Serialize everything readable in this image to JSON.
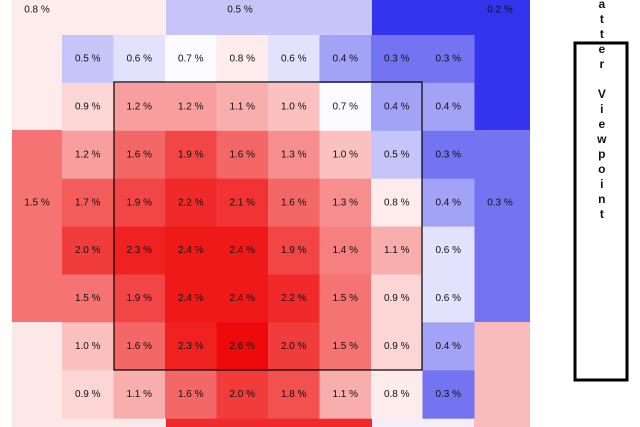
{
  "chart_data": {
    "type": "heatmap",
    "values": [
      [
        0.5,
        0.6,
        0.7,
        0.8,
        0.6,
        0.4,
        0.3,
        0.3
      ],
      [
        0.9,
        1.2,
        1.2,
        1.1,
        1.0,
        0.7,
        0.4,
        0.4
      ],
      [
        1.2,
        1.6,
        1.9,
        1.6,
        1.3,
        1.0,
        0.5,
        0.3
      ],
      [
        1.7,
        1.9,
        2.2,
        2.1,
        1.6,
        1.3,
        0.8,
        0.4
      ],
      [
        2.0,
        2.3,
        2.4,
        2.4,
        1.9,
        1.4,
        1.1,
        0.6
      ],
      [
        1.5,
        1.9,
        2.4,
        2.4,
        2.2,
        1.5,
        0.9,
        0.6
      ],
      [
        1.0,
        1.6,
        2.3,
        2.6,
        2.0,
        1.5,
        0.9,
        0.4
      ],
      [
        0.9,
        1.1,
        1.6,
        2.0,
        1.8,
        1.1,
        0.8,
        0.3
      ]
    ],
    "value_labels": [
      [
        "0.5 %",
        "0.6 %",
        "0.7 %",
        "0.8 %",
        "0.6 %",
        "0.4 %",
        "0.3 %",
        "0.3 %"
      ],
      [
        "0.9 %",
        "1.2 %",
        "1.2 %",
        "1.1 %",
        "1.0 %",
        "0.7 %",
        "0.4 %",
        "0.4 %"
      ],
      [
        "1.2 %",
        "1.6 %",
        "1.9 %",
        "1.6 %",
        "1.3 %",
        "1.0 %",
        "0.5 %",
        "0.3 %"
      ],
      [
        "1.7 %",
        "1.9 %",
        "2.2 %",
        "2.1 %",
        "1.6 %",
        "1.3 %",
        "0.8 %",
        "0.4 %"
      ],
      [
        "2.0 %",
        "2.3 %",
        "2.4 %",
        "2.4 %",
        "1.9 %",
        "1.4 %",
        "1.1 %",
        "0.6 %"
      ],
      [
        "1.5 %",
        "1.9 %",
        "2.4 %",
        "2.4 %",
        "2.2 %",
        "1.5 %",
        "0.9 %",
        "0.6 %"
      ],
      [
        "1.0 %",
        "1.6 %",
        "2.3 %",
        "2.6 %",
        "2.0 %",
        "1.5 %",
        "0.9 %",
        "0.4 %"
      ],
      [
        "0.9 %",
        "1.1 %",
        "1.6 %",
        "2.0 %",
        "1.8 %",
        "1.1 %",
        "0.8 %",
        "0.3 %"
      ]
    ],
    "outer_values": [
      0.8,
      0.5,
      0.2,
      1.5,
      0.3
    ],
    "outer_value_labels": [
      "0.8 %",
      "0.5 %",
      "0.2 %",
      "1.5 %",
      "0.3 %"
    ],
    "colors": [
      "#3434ee",
      "#ffffff",
      "#ee0a0a"
    ],
    "side_label": "LHB Batter Viewpoint"
  }
}
